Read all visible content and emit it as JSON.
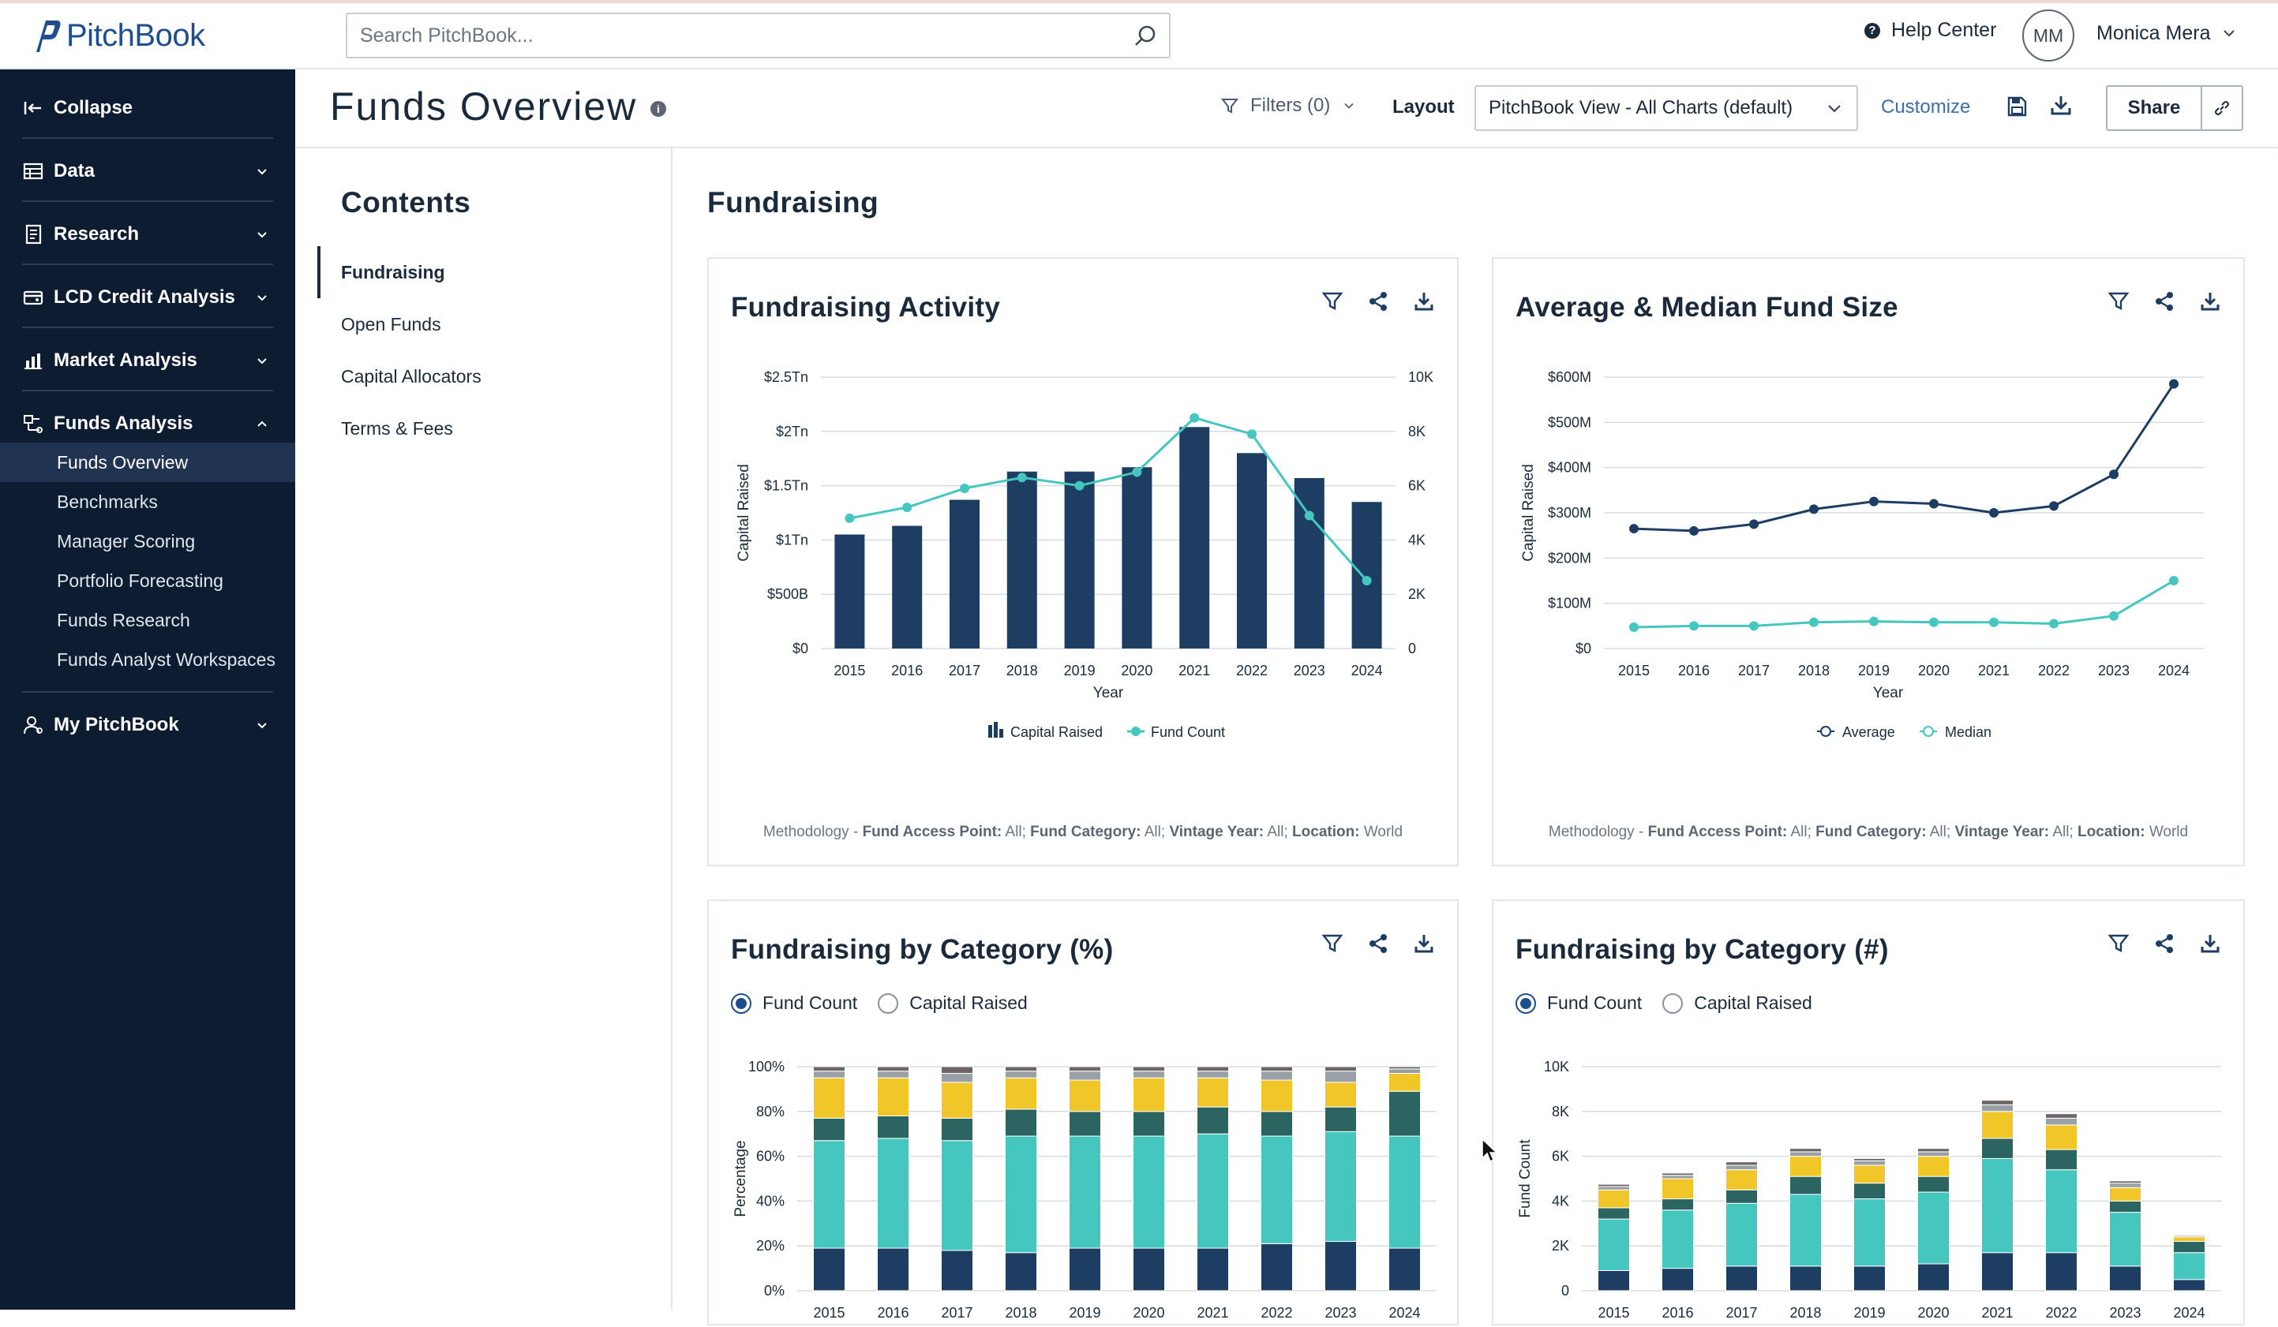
{
  "app": {
    "logo_text": "PitchBook"
  },
  "search": {
    "placeholder": "Search PitchBook..."
  },
  "user": {
    "help_label": "Help Center",
    "initials": "MM",
    "name": "Monica Mera"
  },
  "sidebar": {
    "collapse_label": "Collapse",
    "sections": [
      {
        "label": "Data",
        "icon": "table-icon",
        "expanded": false
      },
      {
        "label": "Research",
        "icon": "document-icon",
        "expanded": false
      },
      {
        "label": "LCD Credit Analysis",
        "icon": "credit-icon",
        "expanded": false
      },
      {
        "label": "Market Analysis",
        "icon": "bar-chart-icon",
        "expanded": false
      },
      {
        "label": "Funds Analysis",
        "icon": "funds-icon",
        "expanded": true
      },
      {
        "label": "My PitchBook",
        "icon": "user-icon",
        "expanded": false
      }
    ],
    "funds_subitems": [
      "Funds Overview",
      "Benchmarks",
      "Manager Scoring",
      "Portfolio Forecasting",
      "Funds Research",
      "Funds Analyst Workspaces"
    ],
    "active_subitem": "Funds Overview"
  },
  "header": {
    "title": "Funds Overview",
    "filters_label": "Filters (0)",
    "layout_label": "Layout",
    "layout_value": "PitchBook View - All Charts (default)",
    "customize_label": "Customize",
    "share_label": "Share"
  },
  "contents": {
    "heading": "Contents",
    "items": [
      "Fundraising",
      "Open Funds",
      "Capital Allocators",
      "Terms & Fees"
    ],
    "active": "Fundraising"
  },
  "main": {
    "section_title": "Fundraising",
    "methodology": {
      "prefix": "Methodology - ",
      "k1": "Fund Access Point:",
      "v1": " All; ",
      "k2": "Fund Category:",
      "v2": " All; ",
      "k3": "Vintage Year:",
      "v3": " All; ",
      "k4": "Location:",
      "v4": " World"
    },
    "cards": {
      "activity": {
        "title": "Fundraising Activity"
      },
      "size": {
        "title": "Average & Median Fund Size"
      },
      "cat_pct": {
        "title": "Fundraising by Category (%)",
        "radio1": "Fund Count",
        "radio2": "Capital Raised"
      },
      "cat_num": {
        "title": "Fundraising by Category (#)",
        "radio1": "Fund Count",
        "radio2": "Capital Raised"
      }
    }
  },
  "colors": {
    "navy": "#1d3d63",
    "teal": "#45c6bf",
    "darkteal": "#2b6460",
    "yellow": "#f1c629",
    "gray": "#9aa1a6",
    "darkgray": "#6d6566"
  },
  "chart_data": [
    {
      "type": "bar",
      "title": "Fundraising Activity",
      "xlabel": "Year",
      "ylabel": "Capital Raised",
      "categories": [
        "2015",
        "2016",
        "2017",
        "2018",
        "2019",
        "2020",
        "2021",
        "2022",
        "2023",
        "2024"
      ],
      "y_ticks": [
        "$0",
        "$500B",
        "$1Tn",
        "$1.5Tn",
        "$2Tn",
        "$2.5Tn"
      ],
      "y2_ticks": [
        "0",
        "2K",
        "4K",
        "6K",
        "8K",
        "10K"
      ],
      "ylim": [
        0,
        2.5
      ],
      "y2lim": [
        0,
        10000
      ],
      "series": [
        {
          "name": "Capital Raised",
          "type": "bar",
          "unit": "Tn",
          "values": [
            1.05,
            1.13,
            1.37,
            1.63,
            1.63,
            1.67,
            2.04,
            1.8,
            1.57,
            1.35
          ]
        },
        {
          "name": "Fund Count",
          "type": "line",
          "axis": "secondary",
          "values": [
            4800,
            5200,
            5900,
            6300,
            6000,
            6500,
            8500,
            7900,
            4900,
            2500
          ]
        }
      ],
      "legend": [
        "Capital Raised",
        "Fund Count"
      ]
    },
    {
      "type": "line",
      "title": "Average & Median Fund Size",
      "xlabel": "Year",
      "ylabel": "Capital Raised",
      "categories": [
        "2015",
        "2016",
        "2017",
        "2018",
        "2019",
        "2020",
        "2021",
        "2022",
        "2023",
        "2024"
      ],
      "y_ticks": [
        "$0",
        "$100M",
        "$200M",
        "$300M",
        "$400M",
        "$500M",
        "$600M"
      ],
      "ylim": [
        0,
        600
      ],
      "series": [
        {
          "name": "Average",
          "values": [
            265,
            260,
            275,
            308,
            325,
            320,
            300,
            315,
            385,
            585
          ]
        },
        {
          "name": "Median",
          "values": [
            47,
            50,
            50,
            58,
            60,
            58,
            58,
            55,
            72,
            150
          ]
        }
      ],
      "legend": [
        "Average",
        "Median"
      ]
    },
    {
      "type": "bar",
      "stacked": true,
      "title": "Fundraising by Category (%)",
      "ylabel": "Percentage",
      "categories": [
        "2015",
        "2016",
        "2017",
        "2018",
        "2019",
        "2020",
        "2021",
        "2022",
        "2023",
        "2024"
      ],
      "y_ticks": [
        "0%",
        "20%",
        "40%",
        "60%",
        "80%",
        "100%"
      ],
      "ylim": [
        0,
        100
      ],
      "segments": [
        [
          19,
          48,
          10,
          18,
          3,
          2
        ],
        [
          19,
          49,
          10,
          17,
          3,
          2
        ],
        [
          18,
          49,
          10,
          16,
          4,
          3
        ],
        [
          17,
          52,
          12,
          14,
          3,
          2
        ],
        [
          19,
          50,
          11,
          14,
          4,
          2
        ],
        [
          19,
          50,
          11,
          15,
          3,
          2
        ],
        [
          19,
          51,
          12,
          13,
          3,
          2
        ],
        [
          21,
          48,
          11,
          14,
          4,
          2
        ],
        [
          22,
          49,
          11,
          11,
          5,
          2
        ],
        [
          19,
          50,
          20,
          8,
          2,
          1
        ]
      ]
    },
    {
      "type": "bar",
      "stacked": true,
      "title": "Fundraising by Category (#)",
      "ylabel": "Fund Count",
      "categories": [
        "2015",
        "2016",
        "2017",
        "2018",
        "2019",
        "2020",
        "2021",
        "2022",
        "2023",
        "2024"
      ],
      "y_ticks": [
        "0",
        "2K",
        "4K",
        "6K",
        "8K",
        "10K"
      ],
      "ylim": [
        0,
        10000
      ],
      "segments": [
        [
          900,
          2300,
          500,
          800,
          150,
          100
        ],
        [
          1000,
          2600,
          500,
          900,
          150,
          100
        ],
        [
          1100,
          2800,
          600,
          900,
          200,
          150
        ],
        [
          1100,
          3200,
          800,
          900,
          200,
          150
        ],
        [
          1100,
          3000,
          700,
          800,
          200,
          100
        ],
        [
          1200,
          3200,
          700,
          900,
          200,
          150
        ],
        [
          1700,
          4200,
          900,
          1200,
          300,
          200
        ],
        [
          1700,
          3700,
          900,
          1100,
          300,
          200
        ],
        [
          1100,
          2400,
          500,
          600,
          200,
          100
        ],
        [
          500,
          1200,
          500,
          200,
          60,
          40
        ]
      ]
    }
  ]
}
